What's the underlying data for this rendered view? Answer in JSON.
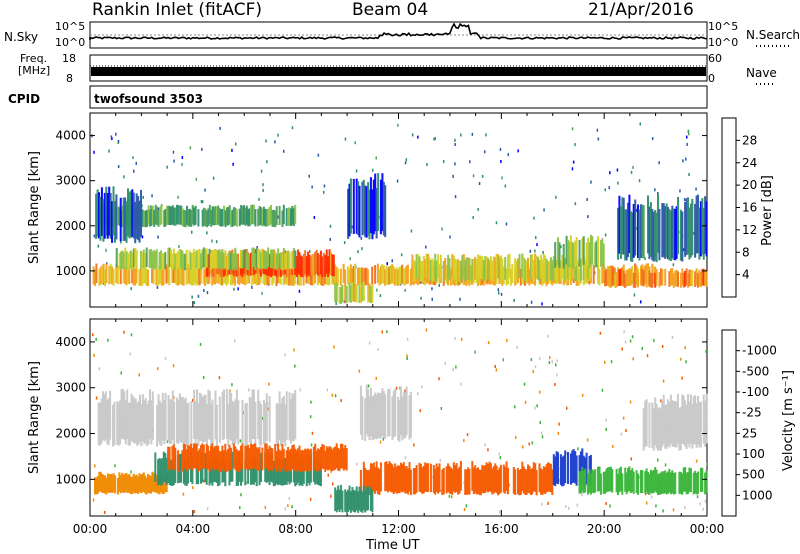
{
  "header": {
    "station": "Rankin Inlet (fitACF)",
    "beam": "Beam 04",
    "date": "21/Apr/2016"
  },
  "top_panels": {
    "nsky_label": "N.Sky",
    "nsky_ticks": [
      "10^5",
      "10^0"
    ],
    "nsearch_label": "N.Search",
    "nsearch_ticks": [
      "10^5",
      "10^0"
    ],
    "freq_label_line1": "Freq.",
    "freq_label_line2": "[MHz]",
    "freq_ticks": [
      "18",
      "8"
    ],
    "nave_label": "Nave",
    "nave_ticks": [
      "60",
      "0"
    ],
    "cpid_label": "CPID",
    "cpid_value": "twofsound 3503"
  },
  "axes": {
    "ylabel_html": "Slant Range [km]",
    "xlabel": "Time UT",
    "yticks": [
      "1000",
      "2000",
      "3000",
      "4000"
    ],
    "xticks": [
      "00:00",
      "04:00",
      "08:00",
      "12:00",
      "16:00",
      "20:00",
      "00:00"
    ]
  },
  "colors": {
    "power": [
      "#0000ff",
      "#2b58a8",
      "#2f8f6b",
      "#4fa05a",
      "#8bc34a",
      "#d7d028",
      "#f5a020",
      "#f07020",
      "#ff2a00"
    ],
    "velocity": [
      "#ff0000",
      "#f55a00",
      "#f08a00",
      "#f5b200",
      "#c8c8c8",
      "#3ab53a",
      "#2f8f6b",
      "#2f6aa8",
      "#1a3ecc"
    ],
    "accent_scatter_gray": "#bdbdbd"
  },
  "chart_data": [
    {
      "type": "heatmap",
      "name": "power",
      "colorbar_label": "Power [dB]",
      "colorbar_ticks": [
        "4",
        "8",
        "12",
        "16",
        "20",
        "24",
        "28"
      ],
      "colorbar_range": [
        0,
        32
      ],
      "xlim": [
        "00:00",
        "24:00"
      ],
      "ylim": [
        200,
        4500
      ],
      "regions": [
        {
          "t0": 0.1,
          "t1": 22.0,
          "r0": 700,
          "r1": 1100,
          "value": 22
        },
        {
          "t0": 4.5,
          "t1": 9.5,
          "r0": 900,
          "r1": 1400,
          "value": 28
        },
        {
          "t0": 1.0,
          "t1": 8.0,
          "r0": 1050,
          "r1": 1450,
          "value": 17
        },
        {
          "t0": 0.3,
          "t1": 8.0,
          "r0": 2000,
          "r1": 2400,
          "value": 12
        },
        {
          "t0": 0.2,
          "t1": 2.0,
          "r0": 1700,
          "r1": 2700,
          "value": 6
        },
        {
          "t0": 12.5,
          "t1": 19.5,
          "r0": 800,
          "r1": 1300,
          "value": 19
        },
        {
          "t0": 18.0,
          "t1": 20.0,
          "r0": 1100,
          "r1": 1700,
          "value": 16
        },
        {
          "t0": 20.0,
          "t1": 24.0,
          "r0": 650,
          "r1": 1000,
          "value": 25
        },
        {
          "t0": 20.5,
          "t1": 24.0,
          "r0": 1300,
          "r1": 2500,
          "value": 7
        },
        {
          "t0": 10.0,
          "t1": 11.5,
          "r0": 1800,
          "r1": 3000,
          "value": 5
        },
        {
          "t0": 9.5,
          "t1": 11.0,
          "r0": 300,
          "r1": 700,
          "value": 18
        }
      ]
    },
    {
      "type": "heatmap",
      "name": "velocity",
      "colorbar_label": "Velocity [m s⁻¹]",
      "colorbar_ticks": [
        "1000",
        "500",
        "100",
        "25",
        "-25",
        "-100",
        "-500",
        "-1000"
      ],
      "xlim": [
        "00:00",
        "24:00"
      ],
      "ylim": [
        200,
        4500
      ],
      "regions": [
        {
          "t0": 0.3,
          "t1": 8.0,
          "r0": 1800,
          "r1": 2800,
          "value": "25"
        },
        {
          "t0": 10.5,
          "t1": 12.5,
          "r0": 1900,
          "r1": 2900,
          "value": "25"
        },
        {
          "t0": 21.5,
          "t1": 24.0,
          "r0": 1700,
          "r1": 2700,
          "value": "25"
        },
        {
          "t0": 0.1,
          "t1": 3.0,
          "r0": 700,
          "r1": 1100,
          "value": "-100"
        },
        {
          "t0": 2.5,
          "t1": 9.0,
          "r0": 900,
          "r1": 1500,
          "value": "500"
        },
        {
          "t0": 3.0,
          "t1": 10.0,
          "r0": 1200,
          "r1": 1700,
          "value": "-500"
        },
        {
          "t0": 10.5,
          "t1": 18.0,
          "r0": 700,
          "r1": 1300,
          "value": "-500"
        },
        {
          "t0": 18.0,
          "t1": 19.5,
          "r0": 900,
          "r1": 1600,
          "value": "1000"
        },
        {
          "t0": 19.0,
          "t1": 24.0,
          "r0": 700,
          "r1": 1200,
          "value": "100"
        },
        {
          "t0": 9.5,
          "t1": 11.0,
          "r0": 300,
          "r1": 800,
          "value": "500"
        }
      ]
    }
  ]
}
